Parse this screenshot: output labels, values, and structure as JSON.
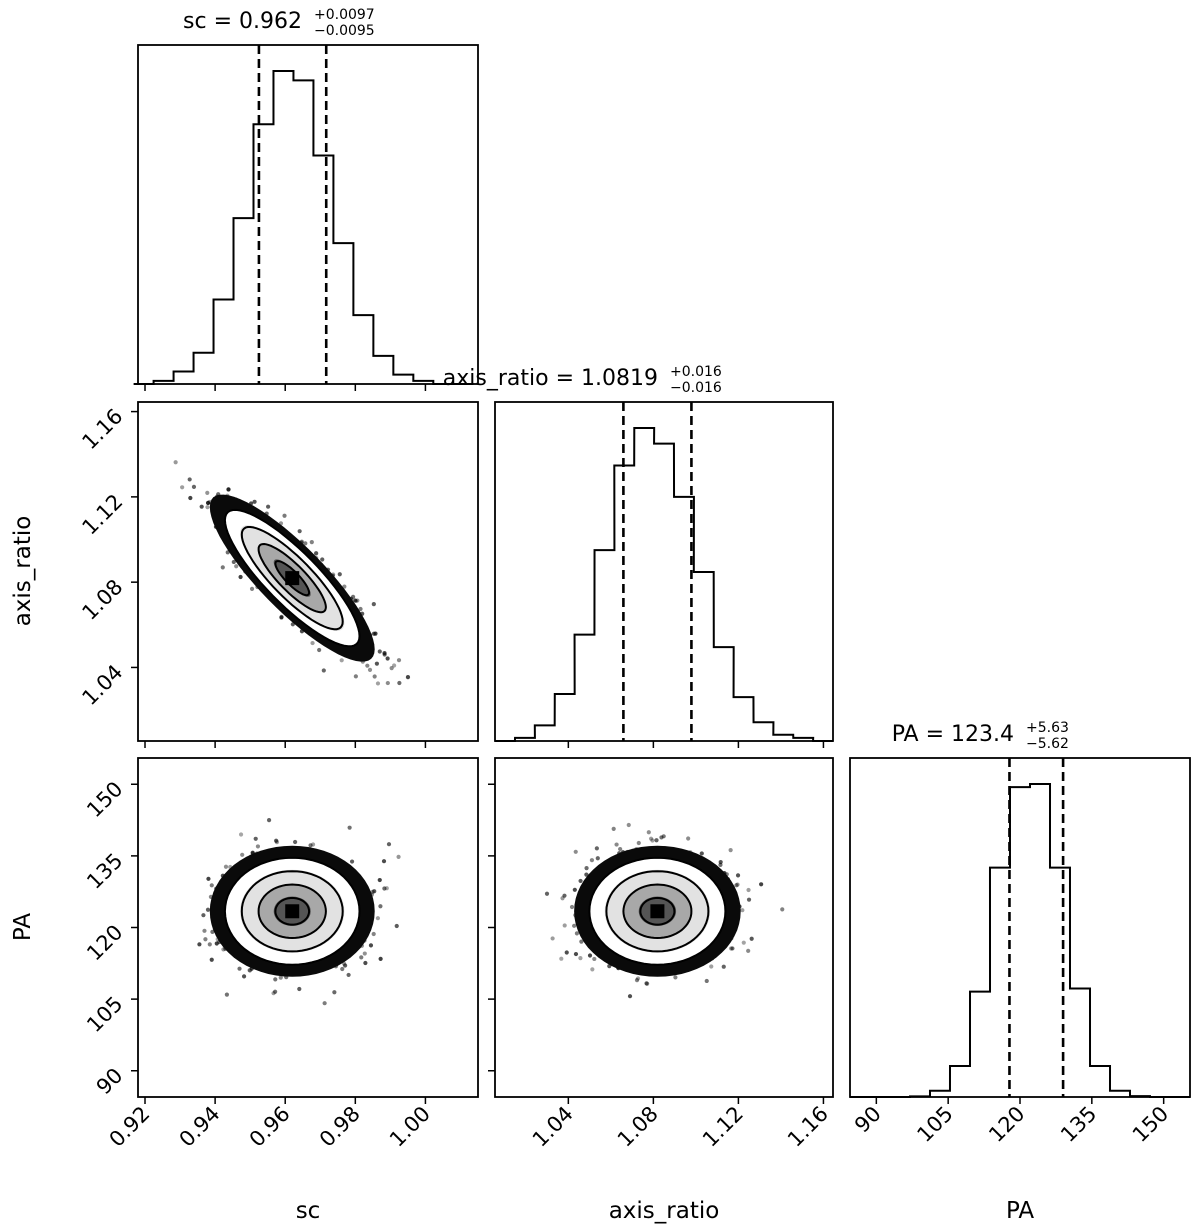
{
  "chart_data": [
    {
      "type": "histogram",
      "panel": "sc",
      "title": {
        "param": "sc",
        "value": "0.962",
        "plus": "+0.0097",
        "minus": "−0.0095"
      },
      "x_range": [
        0.918,
        1.015
      ],
      "bin_centers": [
        0.9196,
        0.9253,
        0.931,
        0.9367,
        0.9424,
        0.9481,
        0.9538,
        0.9595,
        0.9652,
        0.9709,
        0.9766,
        0.9823,
        0.988,
        0.9937,
        0.9994,
        1.0051,
        1.0108
      ],
      "counts": [
        0,
        0.01,
        0.04,
        0.1,
        0.27,
        0.53,
        0.83,
        1.0,
        0.97,
        0.73,
        0.45,
        0.22,
        0.09,
        0.03,
        0.01,
        0,
        0
      ],
      "quantile_lines": [
        0.9525,
        0.9717
      ]
    },
    {
      "type": "scatter_density",
      "panel": "sc vs axis_ratio",
      "x_range": [
        0.918,
        1.015
      ],
      "y_range": [
        1.0055,
        1.1645
      ],
      "mean": [
        0.962,
        1.0819
      ],
      "sigma": [
        0.0096,
        0.016
      ],
      "correlation": -0.85,
      "y_ticks": [
        "1.04",
        "1.08",
        "1.12",
        "1.16"
      ],
      "y_tick_values": [
        1.04,
        1.08,
        1.12,
        1.16
      ],
      "ylabel": "axis_ratio"
    },
    {
      "type": "histogram",
      "panel": "axis_ratio",
      "title": {
        "param": "axis_ratio",
        "value": "1.0819",
        "plus": "+0.016",
        "minus": "−0.016"
      },
      "x_range": [
        1.0055,
        1.1645
      ],
      "bin_centers": [
        1.0102,
        1.0196,
        1.0289,
        1.0383,
        1.0476,
        1.057,
        1.0663,
        1.0757,
        1.085,
        1.0944,
        1.1037,
        1.1131,
        1.1224,
        1.1318,
        1.1411,
        1.1505,
        1.1598
      ],
      "counts": [
        0,
        0.01,
        0.05,
        0.15,
        0.34,
        0.61,
        0.88,
        1.0,
        0.95,
        0.78,
        0.54,
        0.3,
        0.14,
        0.06,
        0.02,
        0.01,
        0
      ],
      "quantile_lines": [
        1.0659,
        1.0979
      ]
    },
    {
      "type": "scatter_density",
      "panel": "sc vs PA",
      "x_range": [
        0.918,
        1.015
      ],
      "y_range": [
        84.5,
        155.5
      ],
      "mean": [
        0.962,
        123.4
      ],
      "sigma": [
        0.0096,
        5.6
      ],
      "correlation": 0,
      "x_ticks": [
        "0.92",
        "0.94",
        "0.96",
        "0.98",
        "1.00"
      ],
      "x_tick_values": [
        0.92,
        0.94,
        0.96,
        0.98,
        1.0
      ],
      "y_ticks": [
        "90",
        "105",
        "120",
        "135",
        "150"
      ],
      "y_tick_values": [
        90,
        105,
        120,
        135,
        150
      ],
      "xlabel": "sc",
      "ylabel": "PA"
    },
    {
      "type": "scatter_density",
      "panel": "axis_ratio vs PA",
      "x_range": [
        1.0055,
        1.1645
      ],
      "y_range": [
        84.5,
        155.5
      ],
      "mean": [
        1.0819,
        123.4
      ],
      "sigma": [
        0.016,
        5.6
      ],
      "correlation": 0,
      "x_ticks": [
        "1.04",
        "1.08",
        "1.12",
        "1.16"
      ],
      "x_tick_values": [
        1.04,
        1.08,
        1.12,
        1.16
      ],
      "xlabel": "axis_ratio"
    },
    {
      "type": "histogram",
      "panel": "PA",
      "title": {
        "param": "PA",
        "value": "123.4",
        "plus": "+5.63",
        "minus": "−5.62"
      },
      "x_range": [
        84.5,
        155.5
      ],
      "bin_centers": [
        86.59,
        90.76,
        94.94,
        99.12,
        103.29,
        107.47,
        111.65,
        115.82,
        120.0,
        124.18,
        128.35,
        132.53,
        136.71,
        140.88,
        145.06,
        149.24,
        153.41
      ],
      "counts": [
        0,
        0,
        0,
        0.002,
        0.02,
        0.1,
        0.34,
        0.74,
        1.0,
        1.01,
        0.74,
        0.35,
        0.1,
        0.02,
        0.003,
        0,
        0
      ],
      "quantile_lines": [
        117.8,
        129.0
      ],
      "x_ticks": [
        "90",
        "105",
        "120",
        "135",
        "150"
      ],
      "x_tick_values": [
        90,
        105,
        120,
        135,
        150
      ],
      "xlabel": "PA"
    }
  ]
}
